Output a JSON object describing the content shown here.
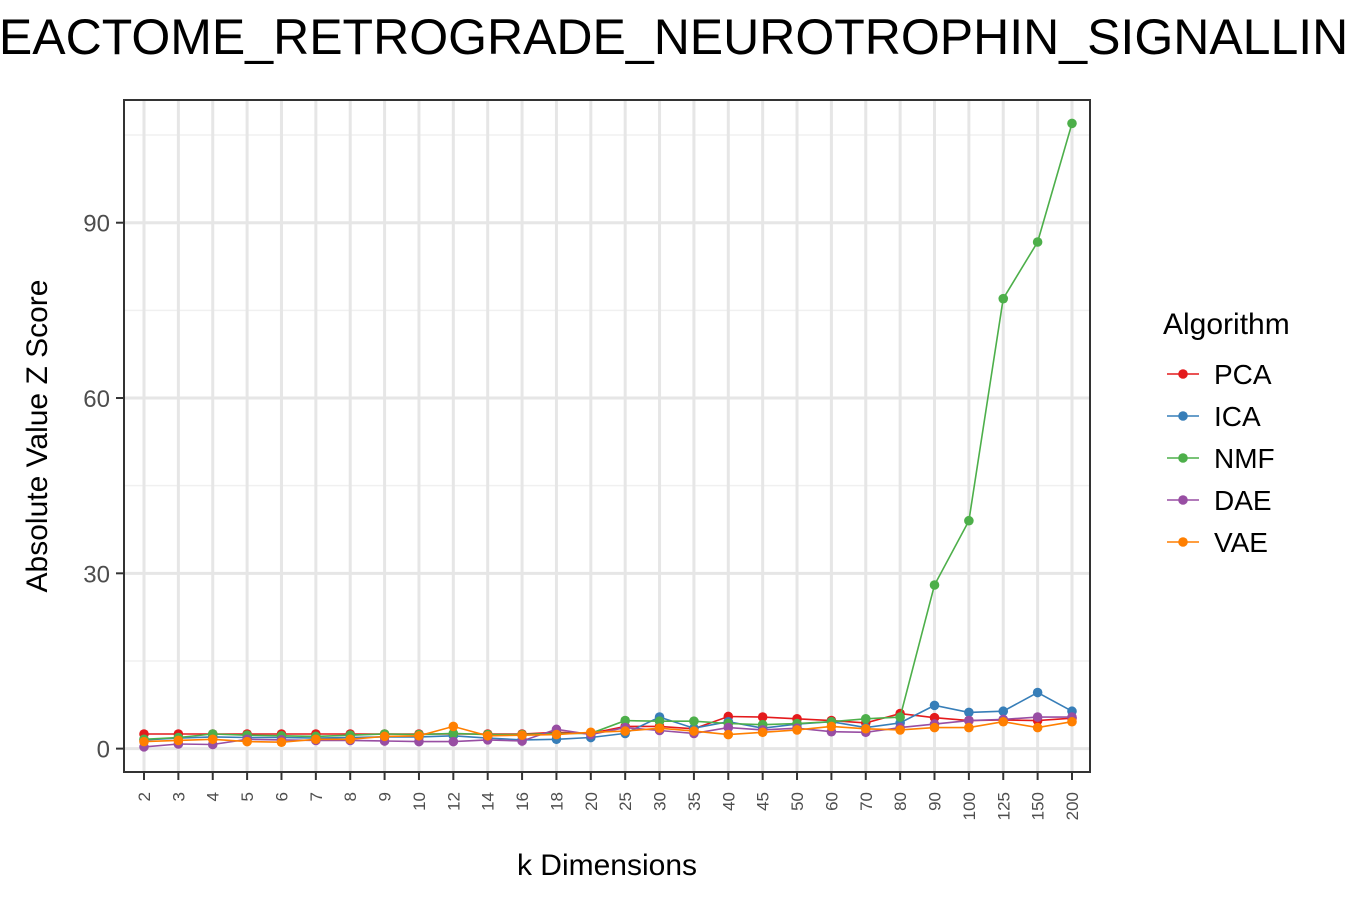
{
  "chart_data": {
    "type": "line",
    "title": "REACTOME_RETROGRADE_NEUROTROPHIN_SIGNALLING",
    "xlabel": "k Dimensions",
    "ylabel": "Absolute Value Z Score",
    "categories": [
      "2",
      "3",
      "4",
      "5",
      "6",
      "7",
      "8",
      "9",
      "10",
      "12",
      "14",
      "16",
      "18",
      "20",
      "25",
      "30",
      "35",
      "40",
      "45",
      "50",
      "60",
      "70",
      "80",
      "90",
      "100",
      "125",
      "150",
      "200"
    ],
    "ylim": [
      -4,
      111
    ],
    "yticks": [
      0,
      30,
      60,
      90
    ],
    "grid": true,
    "legend": {
      "title": "Algorithm",
      "position": "right"
    },
    "series": [
      {
        "name": "PCA",
        "color": "#e41a1c",
        "values": [
          2.5,
          2.5,
          2.5,
          2.5,
          2.5,
          2.5,
          2.5,
          2.5,
          2.5,
          2.5,
          2.5,
          2.5,
          2.8,
          2.6,
          3.8,
          3.8,
          3.4,
          5.5,
          5.4,
          5.1,
          4.8,
          4.4,
          6.0,
          5.3,
          4.8,
          4.9,
          4.8,
          5.2
        ]
      },
      {
        "name": "ICA",
        "color": "#377eb8",
        "values": [
          1.5,
          1.8,
          2.0,
          1.9,
          1.9,
          1.8,
          1.9,
          2.0,
          2.0,
          2.2,
          1.8,
          1.5,
          1.6,
          1.9,
          2.6,
          5.4,
          3.5,
          4.6,
          3.5,
          4.2,
          4.6,
          3.6,
          4.4,
          7.4,
          6.2,
          6.4,
          9.6,
          6.4
        ]
      },
      {
        "name": "NMF",
        "color": "#4daf4a",
        "values": [
          1.6,
          1.9,
          2.5,
          2.3,
          2.2,
          2.1,
          2.3,
          2.5,
          2.4,
          2.6,
          2.4,
          2.4,
          2.6,
          2.6,
          4.8,
          4.7,
          4.7,
          4.3,
          4.1,
          4.3,
          4.6,
          5.1,
          5.4,
          28.0,
          39.0,
          77.0,
          86.7,
          107.0
        ]
      },
      {
        "name": "DAE",
        "color": "#984ea3",
        "values": [
          0.3,
          0.8,
          0.7,
          1.6,
          1.5,
          1.4,
          1.4,
          1.3,
          1.2,
          1.2,
          1.5,
          1.3,
          3.3,
          2.4,
          3.6,
          3.1,
          2.6,
          3.6,
          3.2,
          3.5,
          2.9,
          2.8,
          3.6,
          4.2,
          4.8,
          5.0,
          5.4,
          5.4
        ]
      },
      {
        "name": "VAE",
        "color": "#ff7f00",
        "values": [
          1.2,
          1.4,
          1.6,
          1.2,
          1.1,
          1.6,
          1.6,
          2.1,
          2.2,
          3.8,
          2.2,
          2.3,
          2.4,
          2.8,
          3.0,
          3.5,
          3.0,
          2.4,
          2.8,
          3.2,
          3.8,
          3.4,
          3.2,
          3.6,
          3.6,
          4.6,
          3.6,
          4.6
        ]
      }
    ]
  }
}
